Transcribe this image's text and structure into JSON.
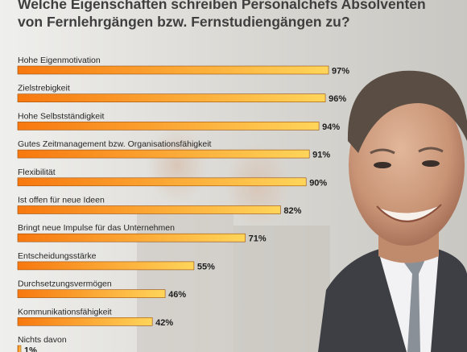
{
  "title": {
    "line1": "Welche Eigenschaften schreiben Personalchefs Absolventen",
    "line2": "von Fernlehrgängen bzw. Fernstudiengängen zu?"
  },
  "colors": {
    "bar_start": "#f7780f",
    "bar_end": "#ffd55a",
    "bar_stroke": "#9a4e0a",
    "background": "#e6e5e1"
  },
  "chart_data": {
    "type": "bar",
    "orientation": "horizontal",
    "title": "Welche Eigenschaften schreiben Personalchefs Absolventen von Fernlehrgängen bzw. Fernstudiengängen zu?",
    "categories": [
      "Hohe Eigenmotivation",
      "Zielstrebigkeit",
      "Hohe Selbstständigkeit",
      "Gutes Zeitmanagement bzw. Organisationsfähigkeit",
      "Flexibilität",
      "Ist offen für neue Ideen",
      "Bringt neue Impulse für das Unternehmen",
      "Entscheidungsstärke",
      "Durchsetzungsvermögen",
      "Kommunikationsfähigkeit",
      "Nichts davon"
    ],
    "values": [
      97,
      96,
      94,
      91,
      90,
      82,
      71,
      55,
      46,
      42,
      1
    ],
    "value_labels": [
      "97%",
      "96%",
      "94%",
      "91%",
      "90%",
      "82%",
      "71%",
      "55%",
      "46%",
      "42%",
      "1%"
    ],
    "unit": "%",
    "xlim": [
      0,
      100
    ],
    "grid": false,
    "legend": "none"
  }
}
